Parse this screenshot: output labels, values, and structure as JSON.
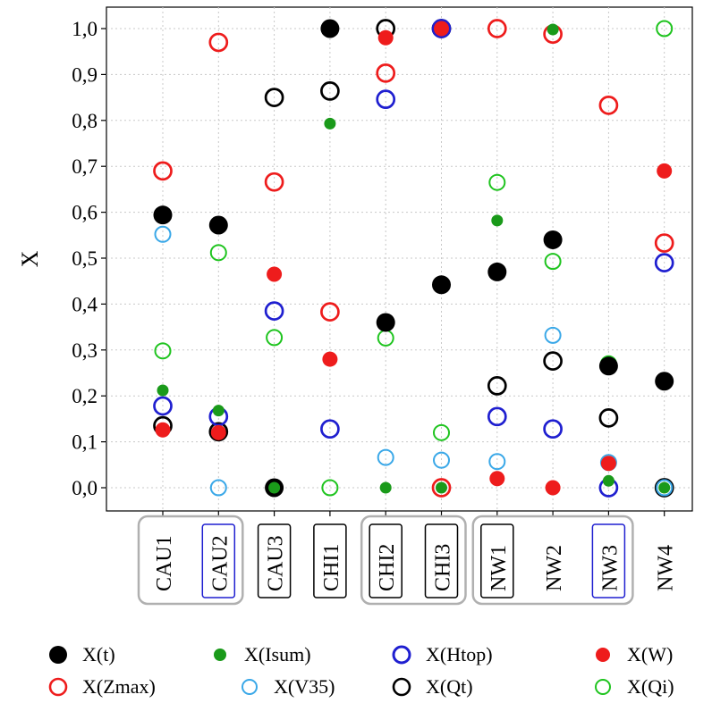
{
  "chart_data": {
    "type": "scatter",
    "ylabel": "X",
    "xlabel": "",
    "ylim": [
      -0.05,
      1.04
    ],
    "grid": true,
    "categories": [
      "CAU1",
      "CAU2",
      "CAU3",
      "CHI1",
      "CHI2",
      "CHI3",
      "NW1",
      "NW2",
      "NW3",
      "NW4"
    ],
    "y_ticks": [
      "0,0",
      "0,1",
      "0,2",
      "0,3",
      "0,4",
      "0,5",
      "0,6",
      "0,7",
      "0,8",
      "0,9",
      "1,0"
    ],
    "category_boxes": [
      {
        "categories": [
          "CAU1",
          "CAU2"
        ],
        "color": "#b0b0b0"
      },
      {
        "categories": [
          "CHI2",
          "CHI3"
        ],
        "color": "#b0b0b0"
      },
      {
        "categories": [
          "NW1",
          "NW2",
          "NW3"
        ],
        "color": "#b0b0b0"
      }
    ],
    "label_boxes": [
      {
        "category": "CAU2",
        "color": "#1f1fd0"
      },
      {
        "category": "CAU3",
        "color": "#000000"
      },
      {
        "category": "CHI1",
        "color": "#000000"
      },
      {
        "category": "CHI2",
        "color": "#000000"
      },
      {
        "category": "CHI3",
        "color": "#000000"
      },
      {
        "category": "NW1",
        "color": "#000000"
      },
      {
        "category": "NW3",
        "color": "#1f1fd0"
      }
    ],
    "series": [
      {
        "name": "X(t)",
        "marker": "filled",
        "color": "#000000",
        "size": "large",
        "values": [
          0.594,
          0.572,
          0.0,
          1.0,
          0.36,
          0.442,
          0.47,
          0.54,
          0.265,
          0.232
        ]
      },
      {
        "name": "X(Isum)",
        "marker": "filled",
        "color": "#1a9a1a",
        "size": "small",
        "values": [
          0.212,
          0.168,
          0.0,
          0.793,
          0.0,
          0.0,
          0.582,
          0.998,
          0.015,
          0.0
        ]
      },
      {
        "name": "X(Htop)",
        "marker": "open",
        "color": "#1f1fd0",
        "values": [
          0.178,
          0.155,
          0.385,
          0.128,
          0.846,
          1.0,
          0.155,
          0.128,
          0.0,
          0.49
        ]
      },
      {
        "name": "X(W)",
        "marker": "filled",
        "color": "#ee1c1c",
        "size": "medium",
        "values": [
          0.126,
          0.12,
          0.465,
          0.28,
          0.98,
          1.0,
          0.02,
          0.0,
          0.053,
          0.69
        ]
      },
      {
        "name": "X(Zmax)",
        "marker": "open",
        "color": "#ee1c1c",
        "values": [
          0.69,
          0.97,
          0.666,
          0.383,
          0.903,
          0.0,
          1.0,
          0.988,
          0.833,
          0.533
        ]
      },
      {
        "name": "X(V35)",
        "marker": "open",
        "color": "#3aa8e8",
        "values": [
          0.552,
          0.0,
          0.0,
          1.0,
          0.066,
          0.06,
          0.057,
          0.332,
          0.055,
          0.0
        ]
      },
      {
        "name": "X(Qt)",
        "marker": "open",
        "color": "#000000",
        "values": [
          0.135,
          0.122,
          0.85,
          0.864,
          1.0,
          1.0,
          0.222,
          0.276,
          0.152,
          0.0
        ]
      },
      {
        "name": "X(Qi)",
        "marker": "open",
        "color": "#1fc41f",
        "values": [
          0.298,
          0.512,
          0.327,
          0.0,
          0.326,
          0.12,
          0.665,
          0.493,
          0.27,
          1.0
        ]
      }
    ]
  },
  "legend": {
    "items": [
      {
        "label": "X(t)"
      },
      {
        "label": "X(Isum)"
      },
      {
        "label": "X(Htop)"
      },
      {
        "label": "X(W)"
      },
      {
        "label": "X(Zmax)"
      },
      {
        "label": "X(V35)"
      },
      {
        "label": "X(Qt)"
      },
      {
        "label": "X(Qi)"
      }
    ]
  }
}
